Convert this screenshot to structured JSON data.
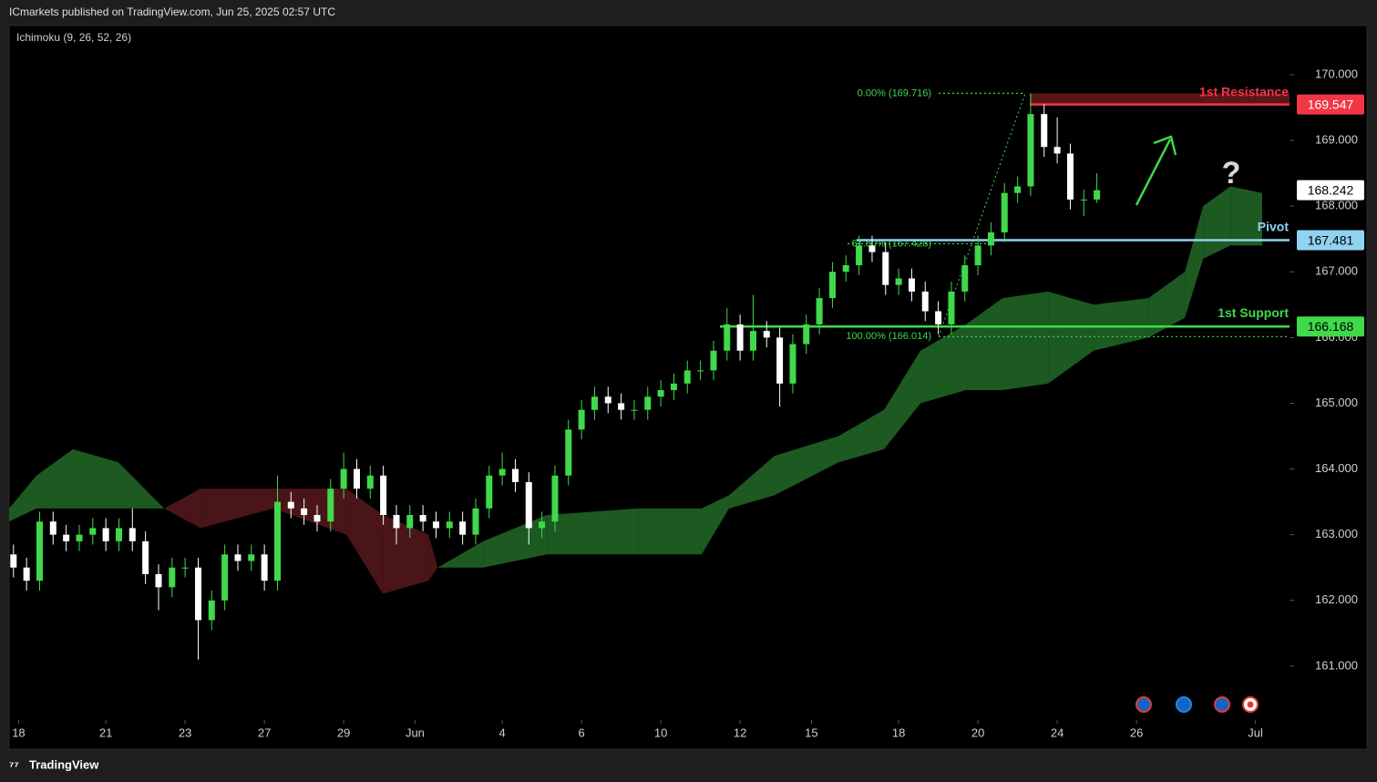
{
  "header": {
    "title": "ICmarkets published on TradingView.com, Jun 25, 2025 02:57 UTC"
  },
  "footer": {
    "brand": "TradingView"
  },
  "chart_data": {
    "type": "candlestick",
    "indicator": "Ichimoku (9, 26, 52, 26)",
    "annotation": "?",
    "up_color": "#3fd94b",
    "down_color": "#ffffff",
    "cloud_up_color": "#1c5a22",
    "cloud_down_color": "#4a1518",
    "xlim": [
      -0.44,
      31.86
    ],
    "ylim": [
      160.18,
      170.72
    ],
    "xticks": [
      {
        "value": -0.2,
        "label": "18"
      },
      {
        "value": 2,
        "label": "21"
      },
      {
        "value": 4,
        "label": "23"
      },
      {
        "value": 6,
        "label": "27"
      },
      {
        "value": 8,
        "label": "29"
      },
      {
        "value": 9.8,
        "label": "Jun"
      },
      {
        "value": 12,
        "label": "4"
      },
      {
        "value": 14,
        "label": "6"
      },
      {
        "value": 16,
        "label": "10"
      },
      {
        "value": 18,
        "label": "12"
      },
      {
        "value": 19.8,
        "label": "15"
      },
      {
        "value": 22,
        "label": "18"
      },
      {
        "value": 24,
        "label": "20"
      },
      {
        "value": 26,
        "label": "24"
      },
      {
        "value": 28,
        "label": "26"
      },
      {
        "value": 31,
        "label": "Jul"
      }
    ],
    "yticks": [
      {
        "value": 161,
        "label": "161.000"
      },
      {
        "value": 162,
        "label": "162.000"
      },
      {
        "value": 163,
        "label": "163.000"
      },
      {
        "value": 164,
        "label": "164.000"
      },
      {
        "value": 165,
        "label": "165.000"
      },
      {
        "value": 166,
        "label": "166.000"
      },
      {
        "value": 167,
        "label": "167.000"
      },
      {
        "value": 168,
        "label": "168.000"
      },
      {
        "value": 169,
        "label": "169.000"
      },
      {
        "value": 170,
        "label": "170.000"
      }
    ],
    "candles": {
      "x": [
        -0.33,
        0,
        0.33,
        0.67,
        1,
        1.33,
        1.67,
        2,
        2.33,
        2.67,
        3,
        3.33,
        3.67,
        4,
        4.33,
        4.67,
        5,
        5.33,
        5.67,
        6,
        6.33,
        6.67,
        7,
        7.33,
        7.67,
        8,
        8.33,
        8.67,
        9,
        9.33,
        9.67,
        10,
        10.33,
        10.67,
        11,
        11.33,
        11.67,
        12,
        12.33,
        12.67,
        13,
        13.33,
        13.67,
        14,
        14.33,
        14.67,
        15,
        15.33,
        15.67,
        16,
        16.33,
        16.67,
        17,
        17.33,
        17.67,
        18,
        18.33,
        18.67,
        19,
        19.33,
        19.67,
        20,
        20.33,
        20.67,
        21,
        21.33,
        21.67,
        22,
        22.33,
        22.67,
        23,
        23.33,
        23.67,
        24,
        24.33,
        24.67,
        25,
        25.33,
        25.67,
        26,
        26.33,
        26.67,
        27
      ],
      "open": [
        162.7,
        162.5,
        162.3,
        163.2,
        163.0,
        162.9,
        163.0,
        163.1,
        162.9,
        163.1,
        162.9,
        162.4,
        162.2,
        162.5,
        162.5,
        161.7,
        162.0,
        162.7,
        162.6,
        162.7,
        162.3,
        163.5,
        163.4,
        163.3,
        163.2,
        163.7,
        164.0,
        163.7,
        163.9,
        163.3,
        163.1,
        163.3,
        163.2,
        163.1,
        163.2,
        163.0,
        163.4,
        163.9,
        164.0,
        163.8,
        163.1,
        163.2,
        163.9,
        164.6,
        164.9,
        165.1,
        165.0,
        164.9,
        164.9,
        165.1,
        165.2,
        165.3,
        165.5,
        165.5,
        165.8,
        166.2,
        165.8,
        166.1,
        166.0,
        165.3,
        165.9,
        166.2,
        166.6,
        167.0,
        167.1,
        167.4,
        167.3,
        166.8,
        166.9,
        166.7,
        166.4,
        166.2,
        166.7,
        167.1,
        167.4,
        167.6,
        168.2,
        168.3,
        169.4,
        168.9,
        168.8,
        168.1,
        168.1
      ],
      "high": [
        162.85,
        162.65,
        163.35,
        163.35,
        163.15,
        163.15,
        163.25,
        163.25,
        163.25,
        163.4,
        163.05,
        162.55,
        162.65,
        162.65,
        162.65,
        162.15,
        162.85,
        162.85,
        162.85,
        162.85,
        163.9,
        163.65,
        163.55,
        163.45,
        163.85,
        164.25,
        164.15,
        164.05,
        164.05,
        163.45,
        163.45,
        163.45,
        163.35,
        163.35,
        163.35,
        163.55,
        164.05,
        164.25,
        164.15,
        163.95,
        163.35,
        164.05,
        164.75,
        165.05,
        165.25,
        165.25,
        165.15,
        165.05,
        165.25,
        165.35,
        165.45,
        165.65,
        165.65,
        165.95,
        166.45,
        166.35,
        166.65,
        166.25,
        166.15,
        166.05,
        166.35,
        166.75,
        167.15,
        167.25,
        167.55,
        167.55,
        167.45,
        167.05,
        167.05,
        166.85,
        166.55,
        166.85,
        167.25,
        167.55,
        167.75,
        168.35,
        168.45,
        169.716,
        169.55,
        169.35,
        168.95,
        168.25,
        168.5
      ],
      "low": [
        162.35,
        162.15,
        162.15,
        162.85,
        162.75,
        162.75,
        162.85,
        162.75,
        162.75,
        162.75,
        162.25,
        161.85,
        162.05,
        162.35,
        161.1,
        161.55,
        161.85,
        162.45,
        162.45,
        162.15,
        162.15,
        163.25,
        163.15,
        163.05,
        163.05,
        163.55,
        163.55,
        163.55,
        163.15,
        162.85,
        162.95,
        163.05,
        162.95,
        162.95,
        162.85,
        162.85,
        163.25,
        163.75,
        163.65,
        162.85,
        162.95,
        163.05,
        163.75,
        164.45,
        164.75,
        164.85,
        164.75,
        164.75,
        164.75,
        164.95,
        165.05,
        165.15,
        165.35,
        165.35,
        165.65,
        165.65,
        165.65,
        165.85,
        164.95,
        165.15,
        165.75,
        166.05,
        166.45,
        166.85,
        166.95,
        167.15,
        166.65,
        166.65,
        166.55,
        166.25,
        166.05,
        166.05,
        166.55,
        166.95,
        167.25,
        167.45,
        168.05,
        168.15,
        168.75,
        168.65,
        167.95,
        167.85,
        168.05
      ],
      "close": [
        162.5,
        162.3,
        163.2,
        163.0,
        162.9,
        163.0,
        163.1,
        162.9,
        163.1,
        162.9,
        162.4,
        162.2,
        162.5,
        162.5,
        161.7,
        162.0,
        162.7,
        162.6,
        162.7,
        162.3,
        163.5,
        163.4,
        163.3,
        163.2,
        163.7,
        164.0,
        163.7,
        163.9,
        163.3,
        163.1,
        163.3,
        163.2,
        163.1,
        163.2,
        163.0,
        163.4,
        163.9,
        164.0,
        163.8,
        163.1,
        163.2,
        163.9,
        164.6,
        164.9,
        165.1,
        165.0,
        164.9,
        164.9,
        165.1,
        165.2,
        165.3,
        165.5,
        165.5,
        165.8,
        166.2,
        165.8,
        166.1,
        166.0,
        165.3,
        165.9,
        166.2,
        166.6,
        167.0,
        167.1,
        167.4,
        167.3,
        166.8,
        166.9,
        166.7,
        166.4,
        166.2,
        166.7,
        167.1,
        167.4,
        167.6,
        168.2,
        168.3,
        169.4,
        168.9,
        168.8,
        168.1,
        168.1,
        168.242
      ]
    },
    "cloud": {
      "x": [
        -0.44,
        0.25,
        1.17,
        2.32,
        3.47,
        4.39,
        6.23,
        8.07,
        8.99,
        10.14,
        10.37,
        11.52,
        13.13,
        15.43,
        17.03,
        17.72,
        18.87,
        20.48,
        21.63,
        22.55,
        23.7,
        24.62,
        25.77,
        26.92,
        28.3,
        29.22,
        29.68,
        30.37,
        31.17
      ],
      "span_a": [
        163.4,
        163.9,
        164.3,
        164.1,
        163.4,
        163.1,
        163.4,
        163.0,
        162.1,
        162.3,
        162.5,
        162.9,
        163.3,
        163.4,
        163.4,
        163.6,
        164.2,
        164.5,
        164.9,
        165.8,
        166.2,
        166.6,
        166.7,
        166.5,
        166.6,
        167.0,
        168.0,
        168.3,
        168.2
      ],
      "span_b": [
        163.2,
        163.4,
        163.4,
        163.4,
        163.4,
        163.7,
        163.7,
        163.7,
        163.3,
        163.0,
        162.5,
        162.5,
        162.7,
        162.7,
        162.7,
        163.4,
        163.6,
        164.1,
        164.3,
        165.0,
        165.2,
        165.2,
        165.3,
        165.8,
        166.0,
        166.3,
        167.2,
        167.4,
        167.4
      ]
    },
    "levels": [
      {
        "label": "1st Resistance",
        "value": 169.547,
        "color": "#f23645"
      },
      {
        "label": "Pivot",
        "value": 167.481,
        "color": "#8fd3f0"
      },
      {
        "label": "1st Support",
        "value": 166.168,
        "color": "#3fd94b"
      }
    ],
    "fib": [
      {
        "label": "0.00% (169.716)",
        "value": 169.716
      },
      {
        "label": "61.80% (167.428)",
        "value": 167.428
      },
      {
        "label": "100.00% (166.014)",
        "value": 166.014
      }
    ],
    "last_price": 168.242
  }
}
